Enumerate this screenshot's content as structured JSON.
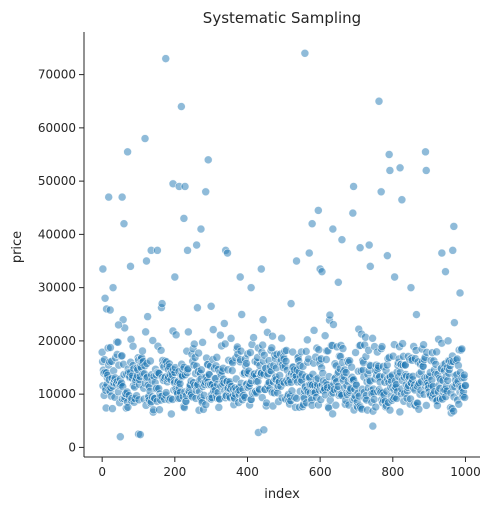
{
  "chart_data": {
    "type": "scatter",
    "title": "Systematic Sampling",
    "xlabel": "index",
    "ylabel": "price",
    "xlim": [
      -50,
      1040
    ],
    "ylim": [
      -1800,
      78000
    ],
    "x_ticks": [
      0,
      200,
      400,
      600,
      800,
      1000
    ],
    "y_ticks": [
      0,
      10000,
      20000,
      30000,
      40000,
      50000,
      60000,
      70000
    ],
    "grid": false,
    "legend": "none",
    "marker_color": "#1f77b4",
    "marker_opacity": 0.5,
    "outliers": [
      {
        "x": 2,
        "y": 33500
      },
      {
        "x": 8,
        "y": 28000
      },
      {
        "x": 12,
        "y": 26000
      },
      {
        "x": 18,
        "y": 47000
      },
      {
        "x": 22,
        "y": 25800
      },
      {
        "x": 30,
        "y": 30000
      },
      {
        "x": 45,
        "y": 23000
      },
      {
        "x": 50,
        "y": 2000
      },
      {
        "x": 55,
        "y": 47000
      },
      {
        "x": 60,
        "y": 42000
      },
      {
        "x": 70,
        "y": 55500
      },
      {
        "x": 78,
        "y": 34000
      },
      {
        "x": 85,
        "y": 19000
      },
      {
        "x": 100,
        "y": 2500
      },
      {
        "x": 105,
        "y": 2400
      },
      {
        "x": 118,
        "y": 58000
      },
      {
        "x": 122,
        "y": 35000
      },
      {
        "x": 135,
        "y": 37000
      },
      {
        "x": 152,
        "y": 37000
      },
      {
        "x": 165,
        "y": 27000
      },
      {
        "x": 175,
        "y": 73000
      },
      {
        "x": 195,
        "y": 49500
      },
      {
        "x": 200,
        "y": 32000
      },
      {
        "x": 212,
        "y": 49000
      },
      {
        "x": 218,
        "y": 64000
      },
      {
        "x": 225,
        "y": 43000
      },
      {
        "x": 228,
        "y": 49000
      },
      {
        "x": 235,
        "y": 37000
      },
      {
        "x": 260,
        "y": 38000
      },
      {
        "x": 272,
        "y": 41000
      },
      {
        "x": 285,
        "y": 48000
      },
      {
        "x": 292,
        "y": 54000
      },
      {
        "x": 300,
        "y": 26500
      },
      {
        "x": 340,
        "y": 37000
      },
      {
        "x": 345,
        "y": 36500
      },
      {
        "x": 380,
        "y": 32000
      },
      {
        "x": 410,
        "y": 30000
      },
      {
        "x": 430,
        "y": 2800
      },
      {
        "x": 438,
        "y": 33500
      },
      {
        "x": 445,
        "y": 3300
      },
      {
        "x": 520,
        "y": 27000
      },
      {
        "x": 535,
        "y": 35000
      },
      {
        "x": 558,
        "y": 74000
      },
      {
        "x": 570,
        "y": 36500
      },
      {
        "x": 578,
        "y": 42000
      },
      {
        "x": 595,
        "y": 44500
      },
      {
        "x": 600,
        "y": 33500
      },
      {
        "x": 605,
        "y": 33000
      },
      {
        "x": 635,
        "y": 41000
      },
      {
        "x": 650,
        "y": 31000
      },
      {
        "x": 660,
        "y": 39000
      },
      {
        "x": 690,
        "y": 44000
      },
      {
        "x": 692,
        "y": 49000
      },
      {
        "x": 710,
        "y": 37500
      },
      {
        "x": 735,
        "y": 38000
      },
      {
        "x": 738,
        "y": 34000
      },
      {
        "x": 745,
        "y": 4000
      },
      {
        "x": 762,
        "y": 65000
      },
      {
        "x": 768,
        "y": 48000
      },
      {
        "x": 785,
        "y": 36000
      },
      {
        "x": 790,
        "y": 55000
      },
      {
        "x": 792,
        "y": 52000
      },
      {
        "x": 805,
        "y": 32000
      },
      {
        "x": 820,
        "y": 52500
      },
      {
        "x": 825,
        "y": 46500
      },
      {
        "x": 850,
        "y": 30000
      },
      {
        "x": 890,
        "y": 55500
      },
      {
        "x": 892,
        "y": 52000
      },
      {
        "x": 935,
        "y": 36500
      },
      {
        "x": 945,
        "y": 33000
      },
      {
        "x": 965,
        "y": 37000
      },
      {
        "x": 968,
        "y": 41500
      },
      {
        "x": 985,
        "y": 29000
      },
      {
        "x": 990,
        "y": 18500
      }
    ],
    "bulk": {
      "n": 920,
      "x_range": [
        0,
        1000
      ],
      "y_median": 12500,
      "y_typical_range": [
        5000,
        30000
      ]
    }
  }
}
